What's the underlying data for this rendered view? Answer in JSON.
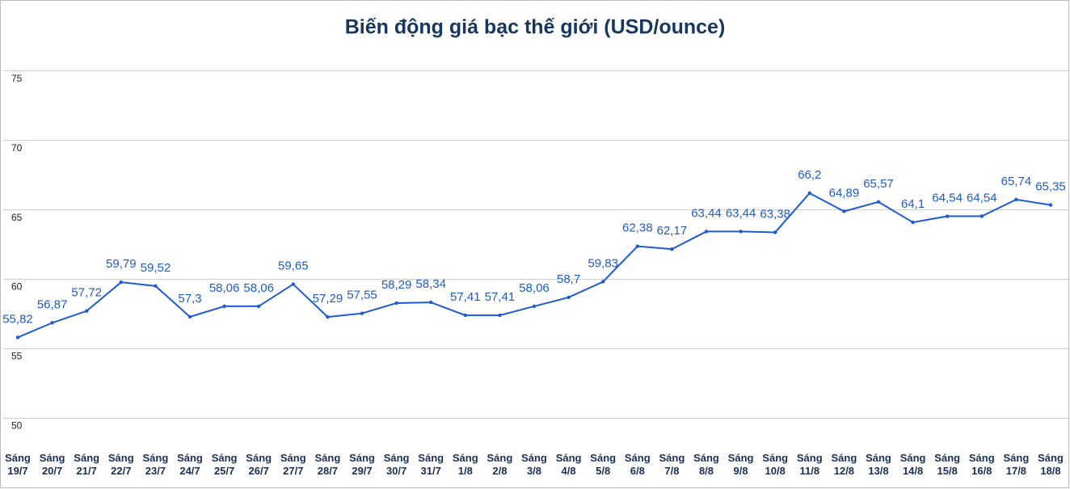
{
  "chart_data": {
    "type": "line",
    "title": "Biến động giá bạc thế giới (USD/ounce)",
    "categories": [
      [
        "Sáng",
        "19/7"
      ],
      [
        "Sáng",
        "20/7"
      ],
      [
        "Sáng",
        "21/7"
      ],
      [
        "Sáng",
        "22/7"
      ],
      [
        "Sáng",
        "23/7"
      ],
      [
        "Sáng",
        "24/7"
      ],
      [
        "Sáng",
        "25/7"
      ],
      [
        "Sáng",
        "26/7"
      ],
      [
        "Sáng",
        "27/7"
      ],
      [
        "Sáng",
        "28/7"
      ],
      [
        "Sáng",
        "29/7"
      ],
      [
        "Sáng",
        "30/7"
      ],
      [
        "Sáng",
        "31/7"
      ],
      [
        "Sáng",
        "1/8"
      ],
      [
        "Sáng",
        "2/8"
      ],
      [
        "Sáng",
        "3/8"
      ],
      [
        "Sáng",
        "4/8"
      ],
      [
        "Sáng",
        "5/8"
      ],
      [
        "Sáng",
        "6/8"
      ],
      [
        "Sáng",
        "7/8"
      ],
      [
        "Sáng",
        "8/8"
      ],
      [
        "Sáng",
        "9/8"
      ],
      [
        "Sáng",
        "10/8"
      ],
      [
        "Sáng",
        "11/8"
      ],
      [
        "Sáng",
        "12/8"
      ],
      [
        "Sáng",
        "13/8"
      ],
      [
        "Sáng",
        "14/8"
      ],
      [
        "Sáng",
        "15/8"
      ],
      [
        "Sáng",
        "16/8"
      ],
      [
        "Sáng",
        "17/8"
      ],
      [
        "Sáng",
        "18/8"
      ]
    ],
    "values": [
      55.82,
      56.87,
      57.72,
      59.79,
      59.52,
      57.3,
      58.06,
      58.06,
      59.65,
      57.29,
      57.55,
      58.29,
      58.34,
      57.41,
      57.41,
      58.06,
      58.7,
      59.83,
      62.38,
      62.17,
      63.44,
      63.44,
      63.38,
      66.2,
      64.89,
      65.57,
      64.1,
      64.54,
      64.54,
      65.74,
      65.35
    ],
    "value_labels": [
      "55,82",
      "56,87",
      "57,72",
      "59,79",
      "59,52",
      "57,3",
      "58,06",
      "58,06",
      "59,65",
      "57,29",
      "57,55",
      "58,29",
      "58,34",
      "57,41",
      "57,41",
      "58,06",
      "58,7",
      "59,83",
      "62,38",
      "62,17",
      "63,44",
      "63,44",
      "63,38",
      "66,2",
      "64,89",
      "65,57",
      "64,1",
      "64,54",
      "64,54",
      "65,74",
      "65,35"
    ],
    "color": "#1f5bd0",
    "ylim": [
      48.4,
      80.1
    ],
    "yticks": [
      50,
      55,
      60,
      65,
      70,
      75
    ],
    "grid": true
  }
}
